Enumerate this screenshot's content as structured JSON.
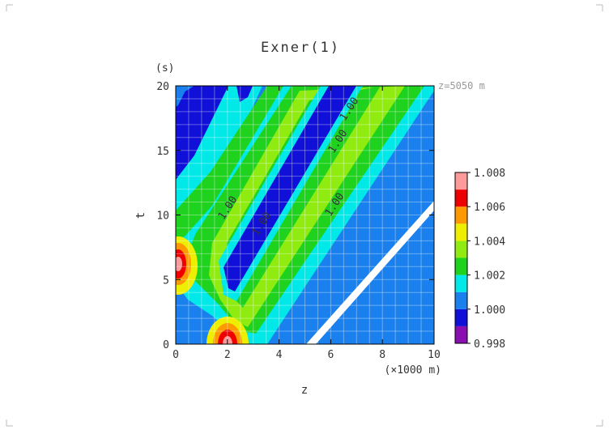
{
  "chart_data": {
    "type": "heatmap",
    "title": "Exner(1)",
    "annotation": "z=5050 m",
    "xlabel": "z",
    "xunit": "(×1000 m)",
    "ylabel": "t",
    "yunit": "(s)",
    "xlim": [
      0,
      10
    ],
    "ylim": [
      0,
      20
    ],
    "xticks": [
      "0",
      "2",
      "4",
      "6",
      "8",
      "10"
    ],
    "yticks": [
      "0",
      "5",
      "10",
      "15",
      "20"
    ],
    "contour_labels": [
      "1.00",
      "1.00",
      "1.00",
      "1.00",
      "1.00"
    ],
    "colorbar": {
      "levels": [
        0.998,
        1.0,
        1.002,
        1.004,
        1.006,
        1.008
      ],
      "tick_labels": [
        "0.998",
        "1.000",
        "1.002",
        "1.004",
        "1.006",
        "1.008"
      ],
      "colors": [
        "#8a0fb0",
        "#1010d8",
        "#1a80ee",
        "#00e8e8",
        "#1ed21e",
        "#90ec10",
        "#eeee00",
        "#ff9900",
        "#ee0000",
        "#ff9a9a"
      ]
    }
  }
}
